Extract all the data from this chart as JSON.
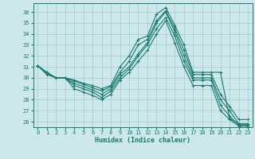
{
  "xlabel": "Humidex (Indice chaleur)",
  "xlim": [
    -0.5,
    23.5
  ],
  "ylim": [
    25.5,
    36.8
  ],
  "yticks": [
    26,
    27,
    28,
    29,
    30,
    31,
    32,
    33,
    34,
    35,
    36
  ],
  "xticks": [
    0,
    1,
    2,
    3,
    4,
    5,
    6,
    7,
    8,
    9,
    10,
    11,
    12,
    13,
    14,
    15,
    16,
    17,
    18,
    19,
    20,
    21,
    22,
    23
  ],
  "bg_color": "#cce8ea",
  "grid_color": "#aacdd2",
  "line_color": "#1a7a6e",
  "lines": [
    {
      "x": [
        0,
        1,
        2,
        3,
        4,
        5,
        6,
        7,
        8,
        9,
        10,
        11,
        12,
        13,
        14,
        15,
        16,
        17,
        18,
        19,
        20,
        21,
        22,
        23
      ],
      "y": [
        31.1,
        30.5,
        30.0,
        30.0,
        29.8,
        29.5,
        29.3,
        29.0,
        29.3,
        31.0,
        32.0,
        33.5,
        33.8,
        35.8,
        36.4,
        34.8,
        33.0,
        30.5,
        30.5,
        30.5,
        30.5,
        26.3,
        25.8,
        25.8
      ]
    },
    {
      "x": [
        0,
        1,
        2,
        3,
        4,
        5,
        6,
        7,
        8,
        9,
        10,
        11,
        12,
        13,
        14,
        15,
        16,
        17,
        18,
        19,
        20,
        21,
        22,
        23
      ],
      "y": [
        31.1,
        30.5,
        30.0,
        30.0,
        29.7,
        29.4,
        29.1,
        28.8,
        29.2,
        30.5,
        31.5,
        33.0,
        33.5,
        35.2,
        36.1,
        34.5,
        32.5,
        30.3,
        30.3,
        30.3,
        28.5,
        27.4,
        26.2,
        26.2
      ]
    },
    {
      "x": [
        0,
        1,
        2,
        3,
        4,
        5,
        6,
        7,
        8,
        9,
        10,
        11,
        12,
        13,
        14,
        15,
        16,
        17,
        18,
        19,
        20,
        21,
        22,
        23
      ],
      "y": [
        31.1,
        30.4,
        30.0,
        30.0,
        29.5,
        29.2,
        28.9,
        28.5,
        29.0,
        30.3,
        31.0,
        32.2,
        33.2,
        35.0,
        36.0,
        34.2,
        32.0,
        30.0,
        30.0,
        30.0,
        28.0,
        27.0,
        25.8,
        25.8
      ]
    },
    {
      "x": [
        0,
        1,
        2,
        3,
        4,
        5,
        6,
        7,
        8,
        9,
        10,
        11,
        12,
        13,
        14,
        15,
        16,
        17,
        18,
        19,
        20,
        21,
        22,
        23
      ],
      "y": [
        31.1,
        30.4,
        30.0,
        30.0,
        29.3,
        29.0,
        28.7,
        28.2,
        28.8,
        30.0,
        30.8,
        32.0,
        33.0,
        34.5,
        35.5,
        33.8,
        31.5,
        29.8,
        29.8,
        29.8,
        27.5,
        26.5,
        25.7,
        25.7
      ]
    },
    {
      "x": [
        0,
        1,
        2,
        3,
        4,
        5,
        6,
        7,
        8,
        9,
        10,
        11,
        12,
        13,
        14,
        15,
        16,
        17,
        18,
        19,
        20,
        21,
        22,
        23
      ],
      "y": [
        31.1,
        30.3,
        30.0,
        30.0,
        29.0,
        28.7,
        28.4,
        28.0,
        28.5,
        29.8,
        30.5,
        31.5,
        32.5,
        34.0,
        35.2,
        33.2,
        31.0,
        29.3,
        29.3,
        29.3,
        27.0,
        26.2,
        25.6,
        25.6
      ]
    }
  ]
}
